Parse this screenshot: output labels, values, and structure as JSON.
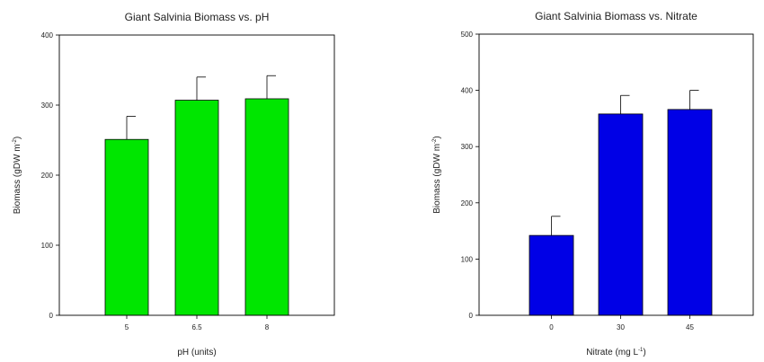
{
  "chart_data": [
    {
      "type": "bar",
      "title": "Giant Salvinia Biomass vs. pH",
      "xlabel": "pH (units)",
      "ylabel": {
        "main": "Biomass (gDW m",
        "sup": "-2",
        "close": ")"
      },
      "categories": [
        "5",
        "6.5",
        "8"
      ],
      "values": [
        251,
        307,
        309
      ],
      "errors": [
        33,
        33,
        33
      ],
      "ylim": [
        0,
        400
      ],
      "yticks": [
        0,
        100,
        200,
        300,
        400
      ],
      "bar_color": "#00e600",
      "grid": false,
      "legend": "none"
    },
    {
      "type": "bar",
      "title": "Giant Salvinia Biomass vs. Nitrate",
      "xlabel": {
        "main": "Nitrate (mg L",
        "sup": "-1",
        "close": ")"
      },
      "ylabel": {
        "main": "Biomass (gDW m",
        "sup": "-2",
        "close": ")"
      },
      "categories": [
        "0",
        "30",
        "45"
      ],
      "values": [
        142,
        358,
        366
      ],
      "errors": [
        34,
        33,
        34
      ],
      "ylim": [
        0,
        500
      ],
      "yticks": [
        0,
        100,
        200,
        300,
        400,
        500
      ],
      "bar_color": "#0000e6",
      "grid": false,
      "legend": "none"
    }
  ]
}
